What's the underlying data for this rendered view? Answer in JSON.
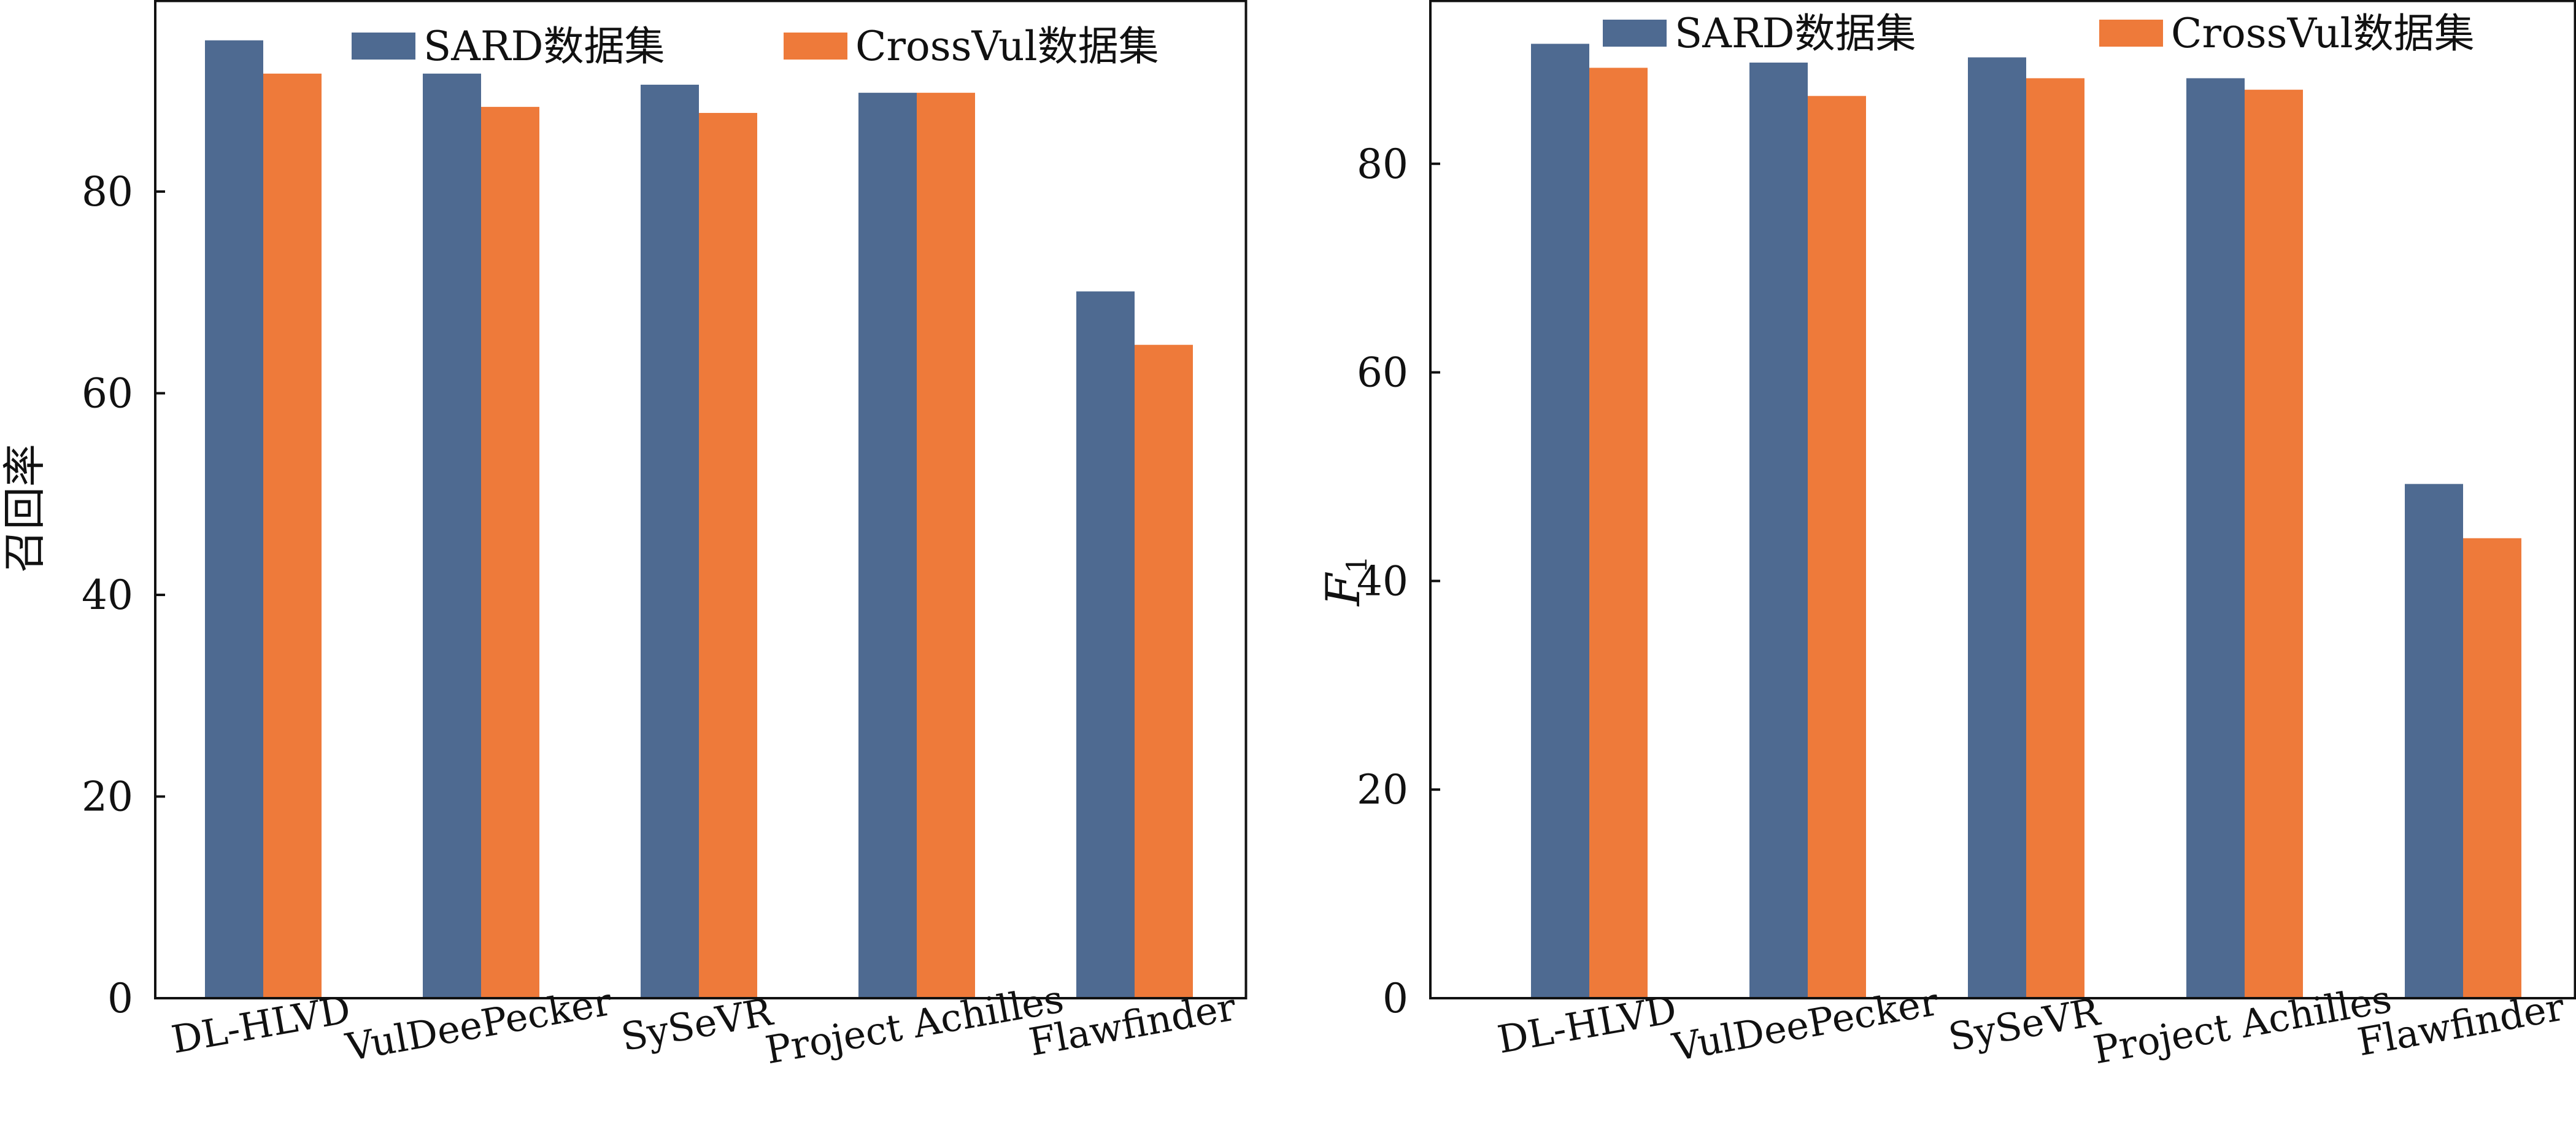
{
  "chart_data": [
    {
      "type": "bar",
      "ylabel": "召回率",
      "ylim": [
        0,
        99
      ],
      "yticks": [
        0,
        20,
        40,
        60,
        80
      ],
      "categories": [
        "DL-HLVD",
        "VulDeePecker",
        "SySeVR",
        "Project Achilles",
        "Flawfinder"
      ],
      "series": [
        {
          "name": "SARD数据集",
          "values": [
            95,
            91.7,
            90.6,
            89.8,
            70.1
          ]
        },
        {
          "name": "CrossVul数据集",
          "values": [
            91.7,
            88.4,
            87.8,
            89.8,
            64.8
          ]
        }
      ],
      "legend_position": "top",
      "grid": false
    },
    {
      "type": "bar",
      "ylabel": "F",
      "ylabel_subscript": "1",
      "ylim": [
        0,
        95.7
      ],
      "yticks": [
        0,
        20,
        40,
        60,
        80
      ],
      "categories": [
        "DL-HLVD",
        "VulDeePecker",
        "SySeVR",
        "Project Achilles",
        "Flawfinder"
      ],
      "series": [
        {
          "name": "SARD数据集",
          "values": [
            91.5,
            89.7,
            90.2,
            88.2,
            49.3
          ]
        },
        {
          "name": "CrossVul数据集",
          "values": [
            89.2,
            86.5,
            88.2,
            87.1,
            44.1
          ]
        }
      ],
      "legend_position": "top",
      "grid": false
    }
  ],
  "colors": {
    "series1": "#4e6a91",
    "series2": "#ee7a3a",
    "axis": "#111111"
  }
}
